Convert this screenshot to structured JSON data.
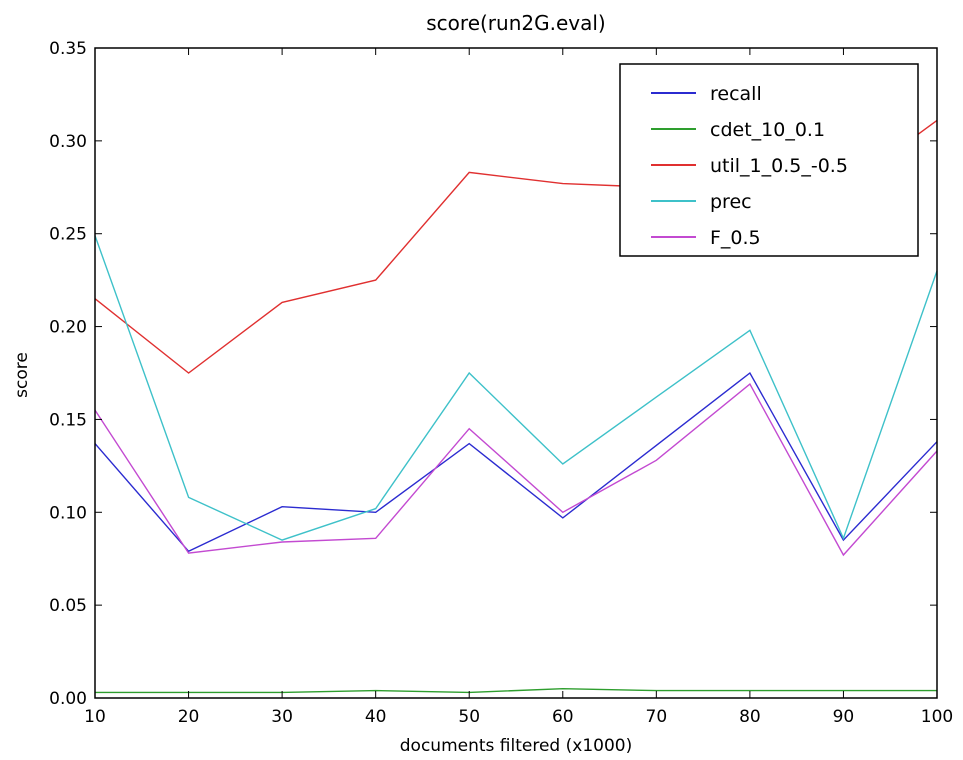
{
  "chart_data": {
    "type": "line",
    "title": "score(run2G.eval)",
    "xlabel": "documents filtered (x1000)",
    "ylabel": "score",
    "xlim": [
      10,
      100
    ],
    "ylim": [
      0.0,
      0.35
    ],
    "x": [
      10,
      20,
      30,
      40,
      50,
      60,
      70,
      80,
      90,
      100
    ],
    "xticks": [
      10,
      20,
      30,
      40,
      50,
      60,
      70,
      80,
      90,
      100
    ],
    "yticks": [
      0.0,
      0.05,
      0.1,
      0.15,
      0.2,
      0.25,
      0.3,
      0.35
    ],
    "ytick_labels": [
      "0.00",
      "0.05",
      "0.10",
      "0.15",
      "0.20",
      "0.25",
      "0.30",
      "0.35"
    ],
    "grid": false,
    "legend_position": "top-right",
    "series": [
      {
        "name": "recall",
        "color": "#2b2bd0",
        "values": [
          0.137,
          0.079,
          0.103,
          0.1,
          0.137,
          0.097,
          0.136,
          0.175,
          0.085,
          0.138
        ]
      },
      {
        "name": "cdet_10_0.1",
        "color": "#2e9e2e",
        "values": [
          0.003,
          0.003,
          0.003,
          0.004,
          0.003,
          0.005,
          0.004,
          0.004,
          0.004,
          0.004
        ]
      },
      {
        "name": "util_1_0.5_-0.5",
        "color": "#e03030",
        "values": [
          0.215,
          0.175,
          0.213,
          0.225,
          0.283,
          0.277,
          0.275,
          0.275,
          0.274,
          0.311
        ]
      },
      {
        "name": "prec",
        "color": "#3ec1c9",
        "values": [
          0.249,
          0.108,
          0.085,
          0.102,
          0.175,
          0.126,
          0.162,
          0.198,
          0.086,
          0.23
        ]
      },
      {
        "name": "F_0.5",
        "color": "#c34ad1",
        "values": [
          0.155,
          0.078,
          0.084,
          0.086,
          0.145,
          0.1,
          0.128,
          0.169,
          0.077,
          0.133
        ]
      }
    ]
  }
}
